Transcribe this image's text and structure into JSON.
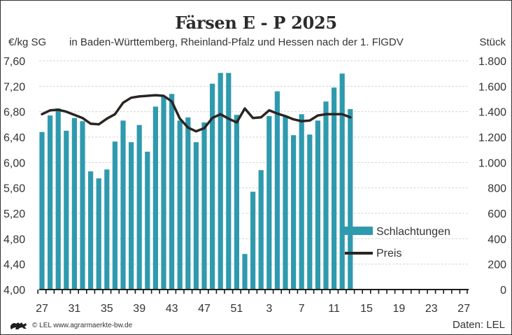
{
  "header": {
    "title": "Färsen E - P 2025",
    "subtitle": "in Baden-Württemberg, Rheinland-Pfalz und Hessen nach der 1. FlGDV",
    "unit_left": "€/kg SG",
    "unit_right": "Stück"
  },
  "footer": {
    "credit": "© LEL www.agrarmaerkte-bw.de",
    "source": "Daten: LEL",
    "logo_icon": "lion-coat-of-arms-icon"
  },
  "colors": {
    "bars": "#2f9aae",
    "line": "#2a2522",
    "grid": "#d6d6d6",
    "axis": "#1a1a1a"
  },
  "chart_data": {
    "type": "bar+line",
    "title": "Färsen E - P 2025",
    "subtitle": "in Baden-Württemberg, Rheinland-Pfalz und Hessen nach der 1. FlGDV",
    "xlabel": "",
    "ylabel_left": "€/kg SG",
    "ylabel_right": "Stück",
    "ylim_left": [
      4.0,
      7.6
    ],
    "ylim_right": [
      0,
      1800
    ],
    "yticks_left": [
      "4,00",
      "4,40",
      "4,80",
      "5,20",
      "5,60",
      "6,00",
      "6,40",
      "6,80",
      "7,20",
      "7,60"
    ],
    "yticks_right": [
      "0",
      "200",
      "400",
      "600",
      "800",
      "1.000",
      "1.200",
      "1.400",
      "1.600",
      "1.800"
    ],
    "x_weeks": [
      27,
      28,
      29,
      30,
      31,
      32,
      33,
      34,
      35,
      36,
      37,
      38,
      39,
      40,
      41,
      42,
      43,
      44,
      45,
      46,
      47,
      48,
      49,
      50,
      51,
      52,
      1,
      2,
      3,
      4,
      5,
      6,
      7,
      8,
      9,
      10,
      11,
      12,
      13,
      14,
      15,
      16,
      17,
      18,
      19,
      20,
      21,
      22,
      23,
      24,
      25,
      26,
      27
    ],
    "xtick_labels": [
      "27",
      "31",
      "35",
      "39",
      "43",
      "47",
      "51",
      "3",
      "7",
      "11",
      "15",
      "19",
      "23",
      "27"
    ],
    "grid": true,
    "legend_position": "bottom-right",
    "series": [
      {
        "name": "Schlachtungen",
        "type": "bar",
        "axis": "right",
        "values": [
          1240,
          1370,
          1425,
          1250,
          1350,
          1325,
          930,
          875,
          945,
          1165,
          1330,
          1160,
          1295,
          1085,
          1440,
          1520,
          1540,
          1330,
          1355,
          1160,
          1315,
          1620,
          1705,
          1705,
          1375,
          280,
          770,
          940,
          1365,
          1560,
          1360,
          1215,
          1380,
          1220,
          1330,
          1480,
          1590,
          1700,
          1420
        ]
      },
      {
        "name": "Preis",
        "type": "line",
        "axis": "left",
        "values": [
          6.76,
          6.82,
          6.83,
          6.8,
          6.75,
          6.7,
          6.61,
          6.6,
          6.69,
          6.76,
          6.94,
          7.02,
          7.04,
          7.05,
          7.06,
          7.05,
          6.96,
          6.69,
          6.55,
          6.49,
          6.54,
          6.7,
          6.76,
          6.69,
          6.63,
          6.85,
          6.7,
          6.71,
          6.82,
          6.77,
          6.73,
          6.68,
          6.65,
          6.66,
          6.74,
          6.76,
          6.76,
          6.76,
          6.71
        ]
      }
    ]
  }
}
